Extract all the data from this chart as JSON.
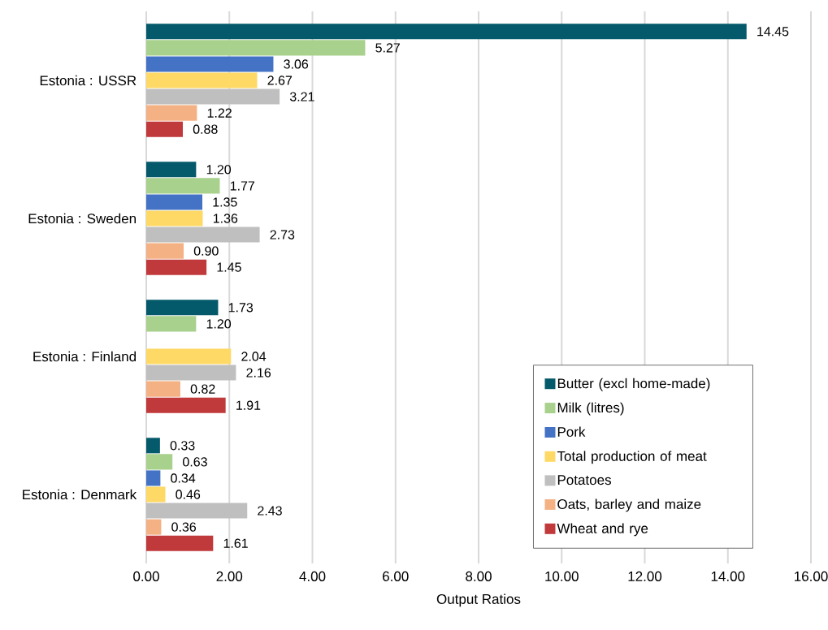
{
  "chart_data": {
    "type": "bar",
    "orientation": "horizontal",
    "xlabel": "Output Ratios",
    "categories": [
      "Estonia : USSR",
      "Estonia : Sweden",
      "Estonia : Finland",
      "Estonia : Denmark"
    ],
    "series": [
      {
        "name": "Butter (excl home-made)",
        "color": "#045a6a",
        "values": [
          14.45,
          1.2,
          1.73,
          0.33
        ],
        "value_labels": [
          "14.45",
          "1.20",
          "1.73",
          "0.33"
        ]
      },
      {
        "name": "Milk (litres)",
        "color": "#a9d18e",
        "values": [
          5.27,
          1.77,
          1.2,
          0.63
        ],
        "value_labels": [
          "5.27",
          "1.77",
          "1.20",
          "0.63"
        ]
      },
      {
        "name": "Pork",
        "color": "#4472c4",
        "values": [
          3.06,
          1.35,
          null,
          0.34
        ],
        "value_labels": [
          "3.06",
          "1.35",
          null,
          "0.34"
        ]
      },
      {
        "name": "Total production of meat",
        "color": "#ffd966",
        "values": [
          2.67,
          1.36,
          2.04,
          0.46
        ],
        "value_labels": [
          "2.67",
          "1.36",
          "2.04",
          "0.46"
        ]
      },
      {
        "name": "Potatoes",
        "color": "#bfbfbf",
        "values": [
          3.21,
          2.73,
          2.16,
          2.43
        ],
        "value_labels": [
          "3.21",
          "2.73",
          "2.16",
          "2.43"
        ]
      },
      {
        "name": "Oats, barley and maize",
        "color": "#f4b183",
        "values": [
          1.22,
          0.9,
          0.82,
          0.36
        ],
        "value_labels": [
          "1.22",
          "0.90",
          "0.82",
          "0.36"
        ]
      },
      {
        "name": "Wheat and rye",
        "color": "#c0393b",
        "values": [
          0.88,
          1.45,
          1.91,
          1.61
        ],
        "value_labels": [
          "0.88",
          "1.45",
          "1.91",
          "1.61"
        ]
      }
    ],
    "xlim": [
      0,
      16
    ],
    "xticks": [
      {
        "value": 0,
        "label": "0.00"
      },
      {
        "value": 2,
        "label": "2.00"
      },
      {
        "value": 4,
        "label": "4.00"
      },
      {
        "value": 6,
        "label": "6.00"
      },
      {
        "value": 8,
        "label": "8.00"
      },
      {
        "value": 10,
        "label": "10.00"
      },
      {
        "value": 12,
        "label": "12.00"
      },
      {
        "value": 14,
        "label": "14.00"
      },
      {
        "value": 16,
        "label": "16.00"
      }
    ],
    "grid": "x",
    "legend": "bottom right"
  }
}
